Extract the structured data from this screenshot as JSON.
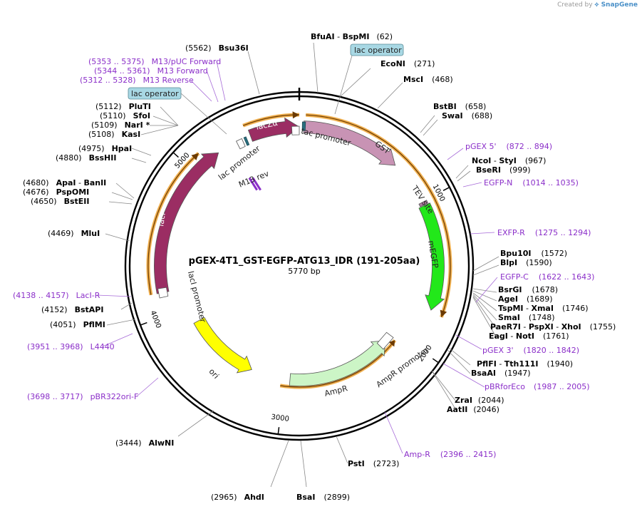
{
  "app": {
    "credit_prefix": "Created by",
    "credit_brand": "SnapGene"
  },
  "plasmid": {
    "name": "pGEX-4T1_GST-EGFP-ATG13_IDR (191-205aa)",
    "size_label": "5770 bp",
    "length_bp": 5770
  },
  "ticks": [
    {
      "bp": 1000,
      "label": "1000"
    },
    {
      "bp": 2000,
      "label": "2000"
    },
    {
      "bp": 3000,
      "label": "3000"
    },
    {
      "bp": 4000,
      "label": "4000"
    },
    {
      "bp": 5000,
      "label": "5000"
    }
  ],
  "enzymes": [
    {
      "name": "BfuAI",
      "sep": " - ",
      "name2": "BspMI",
      "pos": "(62)"
    },
    {
      "name": "EcoNI",
      "pos": "(271)"
    },
    {
      "name": "MscI",
      "pos": "(468)"
    },
    {
      "name": "BstBI",
      "pos": "(658)"
    },
    {
      "name": "SwaI",
      "pos": "(688)"
    },
    {
      "name": "NcoI",
      "sep": " - ",
      "name2": "StyI",
      "pos": "(967)"
    },
    {
      "name": "BseRI",
      "pos": "(999)"
    },
    {
      "name": "Bpu10I",
      "pos": "(1572)"
    },
    {
      "name": "BlpI",
      "pos": "(1590)"
    },
    {
      "name": "BsrGI",
      "pos": "(1678)"
    },
    {
      "name": "AgeI",
      "pos": "(1689)"
    },
    {
      "name": "TspMI",
      "sep": " - ",
      "name2": "XmaI",
      "pos": "(1746)"
    },
    {
      "name": "SmaI",
      "pos": "(1748)"
    },
    {
      "name": "PaeR7I",
      "sep": " - ",
      "name2": "PspXI",
      "sep2": " - ",
      "name3": "XhoI",
      "pos": "(1755)"
    },
    {
      "name": "EagI",
      "sep": " - ",
      "name2": "NotI",
      "pos": "(1761)"
    },
    {
      "name": "PflFI",
      "sep": " - ",
      "name2": "Tth111I",
      "pos": "(1940)"
    },
    {
      "name": "BsaAI",
      "pos": "(1947)"
    },
    {
      "name": "ZraI",
      "pos": "(2044)"
    },
    {
      "name": "AatII",
      "pos": "(2046)"
    },
    {
      "name": "PstI",
      "pos": "(2723)"
    },
    {
      "name": "BsaI",
      "pos": "(2899)"
    },
    {
      "name": "AhdI",
      "pos": "(2965)"
    },
    {
      "name": "AlwNI",
      "pos": "(3444)"
    },
    {
      "name": "PflMI",
      "pos": "(4051)"
    },
    {
      "name": "BstAPI",
      "pos": "(4152)"
    },
    {
      "name": "MluI",
      "pos": "(4469)"
    },
    {
      "name": "BstEII",
      "pos": "(4650)"
    },
    {
      "name": "PspOMI",
      "pos": "(4676)"
    },
    {
      "name": "ApaI",
      "sep": " - ",
      "name2": "BanII",
      "pos": "(4680)"
    },
    {
      "name": "BssHII",
      "pos": "(4880)"
    },
    {
      "name": "HpaI",
      "pos": "(4975)"
    },
    {
      "name": "KasI",
      "pos": "(5108)"
    },
    {
      "name": "NarI",
      "star": " *",
      "pos": "(5109)"
    },
    {
      "name": "SfoI",
      "pos": "(5110)"
    },
    {
      "name": "PluTI",
      "pos": "(5112)"
    },
    {
      "name": "Bsu36I",
      "pos": "(5562)"
    }
  ],
  "primers": [
    {
      "name": "pGEX 5'",
      "range": "(872 .. 894)"
    },
    {
      "name": "EGFP-N",
      "range": "(1014 .. 1035)"
    },
    {
      "name": "EXFP-R",
      "range": "(1275 .. 1294)"
    },
    {
      "name": "EGFP-C",
      "range": "(1622 .. 1643)"
    },
    {
      "name": "pGEX 3'",
      "range": "(1820 .. 1842)"
    },
    {
      "name": "pBRforEco",
      "range": "(1987 .. 2005)"
    },
    {
      "name": "Amp-R",
      "range": "(2396 .. 2415)"
    },
    {
      "name": "pBR322ori-F",
      "range": "(3698 .. 3717)"
    },
    {
      "name": "L4440",
      "range": "(3951 .. 3968)"
    },
    {
      "name": "LacI-R",
      "range": "(4138 .. 4157)"
    },
    {
      "name": "M13 Reverse",
      "range": "(5312 .. 5328)"
    },
    {
      "name": "M13 Forward",
      "range": "(5344 .. 5361)"
    },
    {
      "name": "M13/pUC Forward",
      "range": "(5353 .. 5375)"
    }
  ],
  "features": [
    {
      "name": "lacZα",
      "color": "#9b2d63"
    },
    {
      "name": "GST",
      "color": "#c893b4"
    },
    {
      "name": "mEGFP",
      "color": "#22e81a"
    },
    {
      "name": "AmpR",
      "color": "#ccf5c6"
    },
    {
      "name": "ori",
      "color": "#ffff00"
    },
    {
      "name": "lacI",
      "color": "#9b2d63"
    },
    {
      "name": "tac promoter",
      "color": "#ffffff"
    },
    {
      "name": "lac promoter",
      "color": "#ffffff"
    },
    {
      "name": "AmpR promoter",
      "color": "#ffffff"
    },
    {
      "name": "lacI promoter",
      "color": "#ffffff"
    },
    {
      "name": "TEV site",
      "color": "#b07aa0"
    },
    {
      "name": "M13 rev",
      "color": "#8b2fc9"
    }
  ],
  "boxed_labels": [
    {
      "name": "lac operator"
    },
    {
      "name": "lac operator"
    }
  ],
  "colors": {
    "enzyme_text": "#000000",
    "primer_text": "#8b2fc9",
    "backbone": "#000000",
    "highlight": "#f0b050"
  }
}
